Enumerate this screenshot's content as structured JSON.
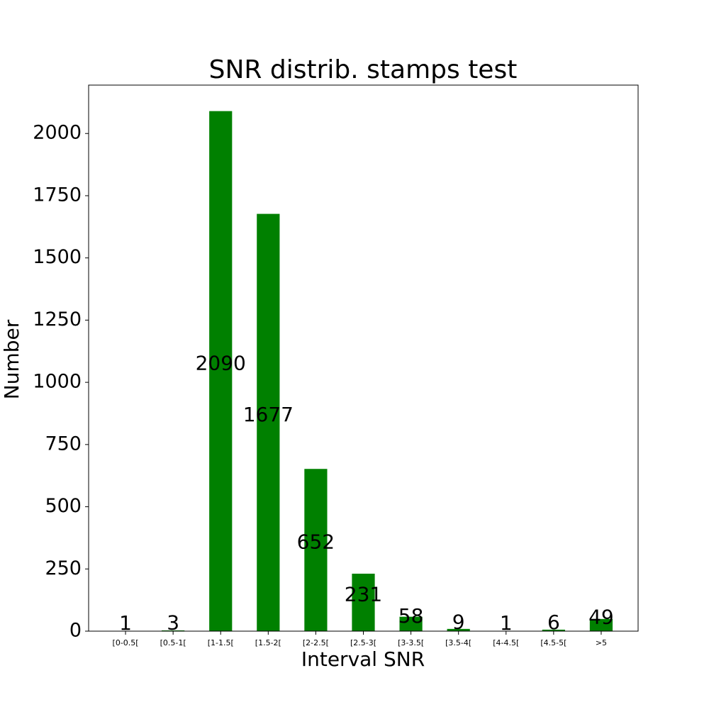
{
  "chart_data": {
    "type": "bar",
    "title": "SNR distrib. stamps test",
    "xlabel": "Interval SNR",
    "ylabel": "Number",
    "categories": [
      "[0-0.5[",
      "[0.5-1[",
      "[1-1.5[",
      "[1.5-2[",
      "[2-2.5[",
      "[2.5-3[",
      "[3-3.5[",
      "[3.5-4[",
      "[4-4.5[",
      "[4.5-5[",
      ">5"
    ],
    "values": [
      1,
      3,
      2090,
      1677,
      652,
      231,
      58,
      9,
      1,
      6,
      49
    ],
    "color": "#008000",
    "ylim": [
      0,
      2194.5
    ],
    "yticks": [
      0,
      250,
      500,
      750,
      1000,
      1250,
      1500,
      1750,
      2000
    ],
    "grid": false
  }
}
